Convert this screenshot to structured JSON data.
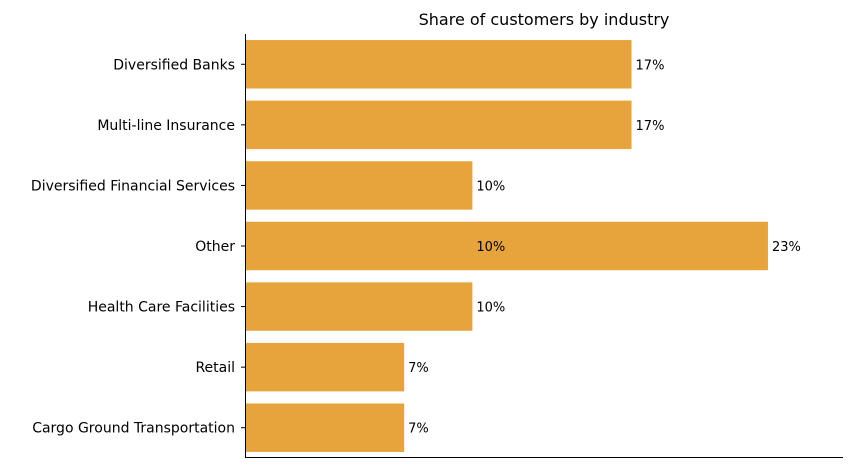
{
  "chart_data": {
    "type": "bar",
    "orientation": "horizontal",
    "title": "Share of customers by industry",
    "xlabel": "",
    "ylabel": "",
    "categories": [
      "Diversified Banks",
      "Multi-line Insurance",
      "Diversified Financial Services",
      "Other",
      "Health Care Facilities",
      "Retail",
      "Cargo Ground Transportation"
    ],
    "values": [
      17,
      17,
      10,
      23,
      10,
      7,
      7
    ],
    "data_labels": [
      "17%",
      "17%",
      "10%",
      "23%",
      "10%",
      "7%",
      "7%"
    ],
    "extra_annotations": [
      {
        "category": "Other",
        "text": "10%"
      }
    ],
    "xlim": [
      0,
      26.3
    ],
    "grid": false,
    "legend": "none",
    "bar_color": "#E8A43C"
  }
}
